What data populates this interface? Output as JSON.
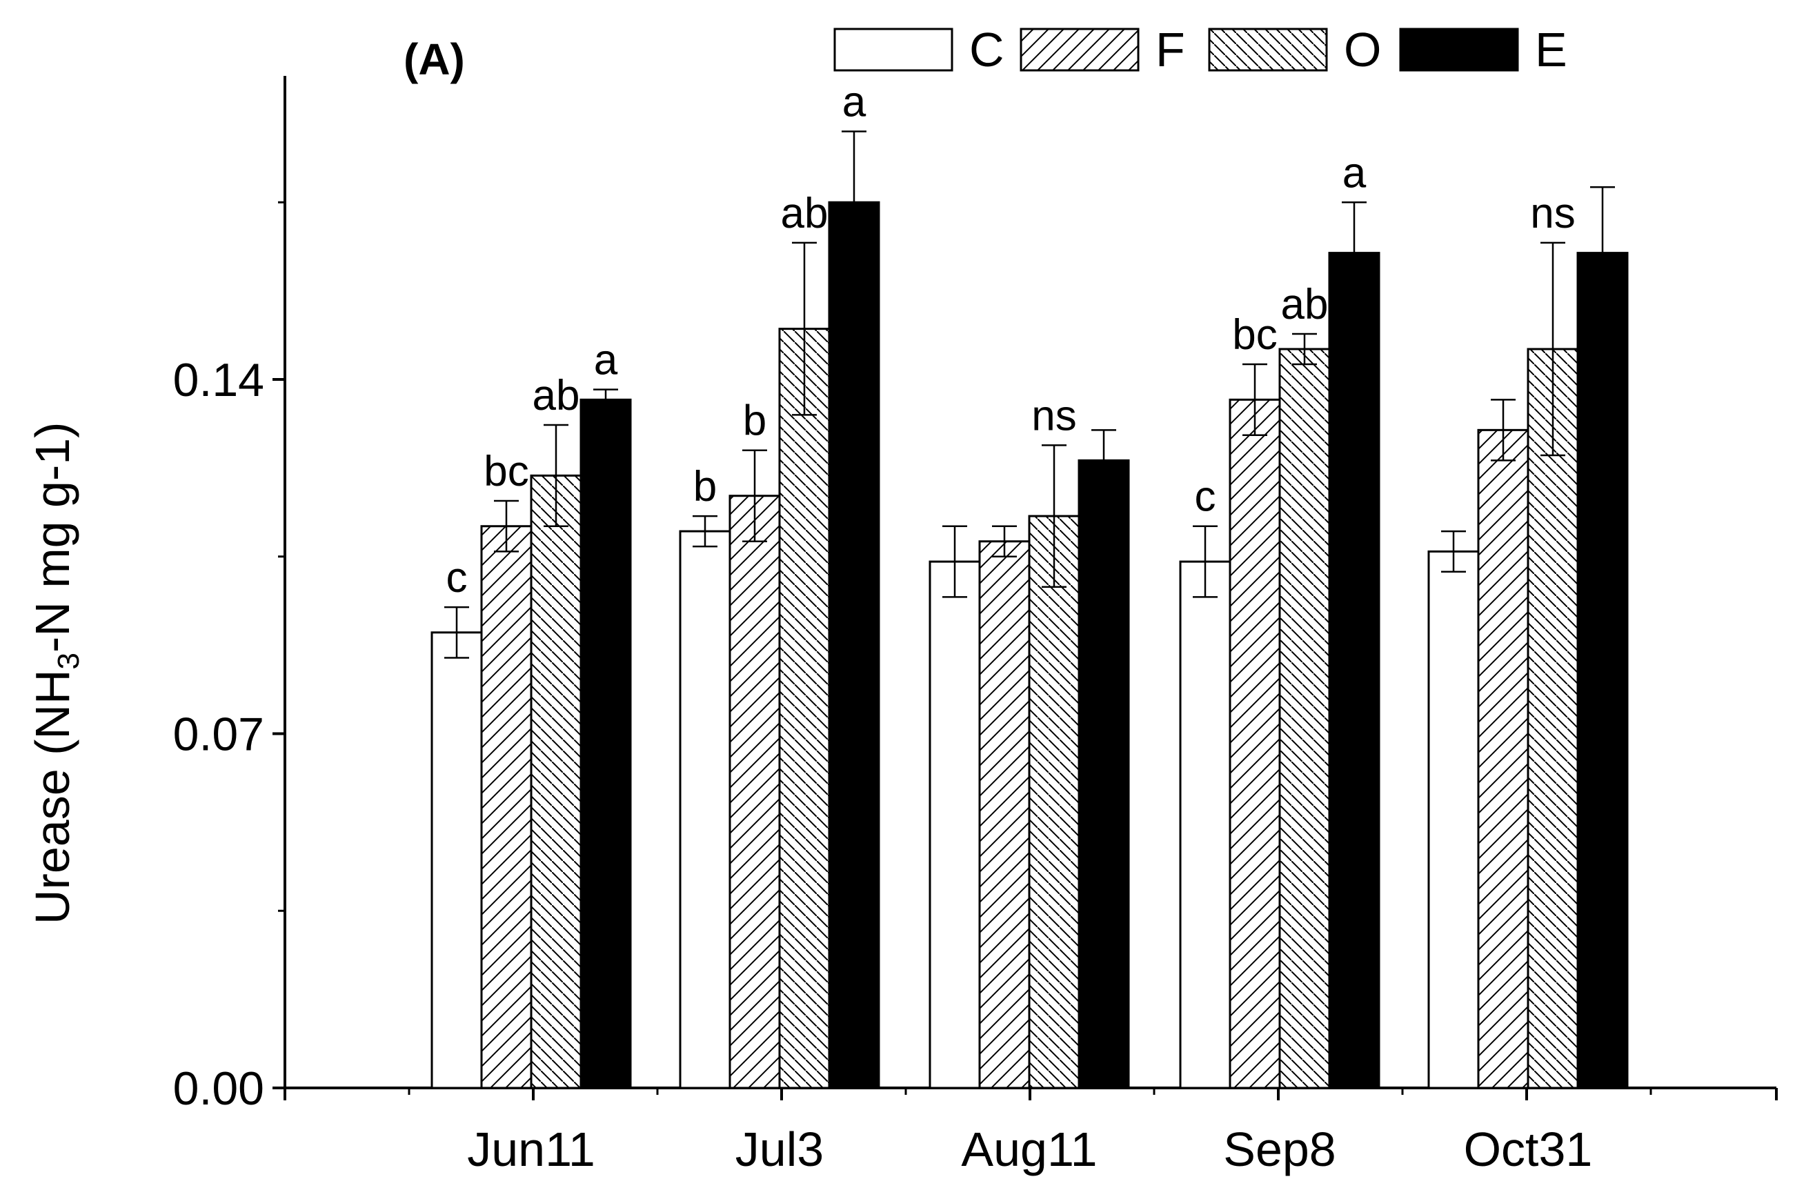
{
  "chart_data": {
    "type": "bar",
    "panel_label": "(A)",
    "ylabel_main": "Urease (NH",
    "ylabel_sub": "3",
    "ylabel_tail": "-N mg g-1)",
    "ylim": [
      0,
      0.2
    ],
    "yticks": [
      "0.00",
      "0.07",
      "0.14"
    ],
    "ytick_values": [
      0,
      0.07,
      0.14
    ],
    "categories": [
      "Jun11",
      "Jul3",
      "Aug11",
      "Sep8",
      "Oct31"
    ],
    "series": [
      {
        "name": "C",
        "pattern": "white",
        "values": [
          0.09,
          0.11,
          0.104,
          0.104,
          0.106
        ],
        "errors": [
          0.005,
          0.003,
          0.007,
          0.007,
          0.004
        ]
      },
      {
        "name": "F",
        "pattern": "hatch-forward",
        "values": [
          0.111,
          0.117,
          0.108,
          0.136,
          0.13
        ],
        "errors": [
          0.005,
          0.009,
          0.003,
          0.007,
          0.006
        ]
      },
      {
        "name": "O",
        "pattern": "hatch-back",
        "values": [
          0.121,
          0.15,
          0.113,
          0.146,
          0.146
        ],
        "errors": [
          0.01,
          0.017,
          0.014,
          0.003,
          0.021
        ]
      },
      {
        "name": "E",
        "pattern": "black",
        "values": [
          0.136,
          0.175,
          0.124,
          0.165,
          0.165
        ],
        "errors": [
          0.002,
          0.014,
          0.006,
          0.01,
          0.013
        ]
      }
    ],
    "letters": [
      [
        "c",
        "bc",
        "ab",
        "a"
      ],
      [
        "b",
        "b",
        "ab",
        "a"
      ],
      [
        "",
        "",
        "ns",
        ""
      ],
      [
        "c",
        "bc",
        "ab",
        "a"
      ],
      [
        "",
        "",
        "ns",
        ""
      ]
    ],
    "legend_position": "top-right",
    "grid": false
  }
}
